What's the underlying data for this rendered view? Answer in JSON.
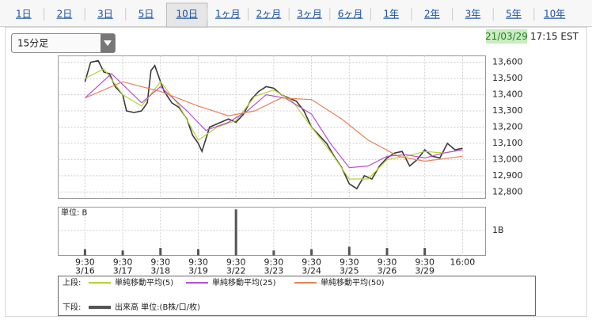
{
  "tabs": [
    "1日",
    "2日",
    "3日",
    "5日",
    "10日",
    "1ヶ月",
    "2ヶ月",
    "3ヶ月",
    "6ヶ月",
    "1年",
    "2年",
    "3年",
    "5年",
    "10年"
  ],
  "selected_tab": 4,
  "interval": "15分足",
  "timestamp": {
    "date": "21/03/29",
    "time": "17:15 EST"
  },
  "legend": {
    "upper": "上段:",
    "lower": "下段:"
  },
  "chart_data": [
    {
      "type": "line",
      "xlim": [
        -0.71,
        10.61
      ],
      "ylim": [
        12760,
        13640
      ],
      "grid": true,
      "yticks": [
        {
          "value": 12800,
          "label": "12,800"
        },
        {
          "value": 12900,
          "label": "12,900"
        },
        {
          "value": 13000,
          "label": "13,000"
        },
        {
          "value": 13100,
          "label": "13,100"
        },
        {
          "value": 13200,
          "label": "13,200"
        },
        {
          "value": 13300,
          "label": "13,300"
        },
        {
          "value": 13400,
          "label": "13,400"
        },
        {
          "value": 13500,
          "label": "13,500"
        },
        {
          "value": 13600,
          "label": "13,600"
        }
      ],
      "xticks": [
        {
          "value": 0,
          "label": "9:30"
        },
        {
          "value": 1,
          "label": "9:30"
        },
        {
          "value": 2,
          "label": "9:30"
        },
        {
          "value": 3,
          "label": "9:30"
        },
        {
          "value": 4,
          "label": "9:30"
        },
        {
          "value": 5,
          "label": "9:30"
        },
        {
          "value": 6,
          "label": "9:30"
        },
        {
          "value": 7,
          "label": "9:30"
        },
        {
          "value": 8,
          "label": "9:30"
        },
        {
          "value": 9,
          "label": "9:30"
        },
        {
          "value": 10,
          "label": "16:00"
        }
      ],
      "xtick_dates": [
        "3/16",
        "3/17",
        "3/18",
        "3/19",
        "3/22",
        "3/23",
        "3/24",
        "3/25",
        "3/26",
        "3/29",
        null
      ],
      "series": [
        {
          "color": "#3a3a3a",
          "x": [
            0,
            0.15,
            0.35,
            0.5,
            0.65,
            0.8,
            1.0,
            1.1,
            1.3,
            1.5,
            1.65,
            1.75,
            1.85,
            2.0,
            2.1,
            2.3,
            2.5,
            2.7,
            2.85,
            3.0,
            3.1,
            3.3,
            3.5,
            3.8,
            4.0,
            4.2,
            4.4,
            4.6,
            4.8,
            5.0,
            5.2,
            5.4,
            5.6,
            5.8,
            6.0,
            6.2,
            6.4,
            6.6,
            6.8,
            7.0,
            7.2,
            7.4,
            7.6,
            7.8,
            8.0,
            8.2,
            8.4,
            8.6,
            8.8,
            9.0,
            9.2,
            9.4,
            9.6,
            9.8,
            10.0
          ],
          "values": [
            13480,
            13600,
            13610,
            13540,
            13530,
            13450,
            13400,
            13300,
            13290,
            13300,
            13350,
            13550,
            13580,
            13480,
            13420,
            13350,
            13320,
            13250,
            13150,
            13100,
            13050,
            13200,
            13220,
            13250,
            13230,
            13280,
            13370,
            13420,
            13450,
            13440,
            13400,
            13380,
            13360,
            13300,
            13200,
            13150,
            13100,
            13020,
            12950,
            12850,
            12820,
            12900,
            12880,
            12960,
            13010,
            13040,
            13050,
            12960,
            13000,
            13060,
            13020,
            13010,
            13100,
            13060,
            13070
          ]
        },
        {
          "name": "単純移動平均(5)",
          "color": "#b5d334",
          "x": [
            0,
            0.5,
            1.0,
            1.5,
            2.0,
            2.5,
            3.0,
            3.5,
            4.0,
            4.5,
            5.0,
            5.5,
            6.0,
            6.5,
            7.0,
            7.5,
            8.0,
            8.5,
            9.0,
            9.5,
            10.0
          ],
          "values": [
            13500,
            13560,
            13400,
            13330,
            13480,
            13330,
            13120,
            13200,
            13240,
            13390,
            13430,
            13360,
            13200,
            13050,
            12880,
            12880,
            13000,
            13020,
            13050,
            13040,
            13060
          ]
        },
        {
          "name": "単純移動平均(25)",
          "color": "#b84fd6",
          "x": [
            0,
            0.7,
            1.5,
            2.0,
            2.7,
            3.2,
            3.8,
            4.3,
            4.8,
            5.3,
            6.0,
            6.5,
            7.0,
            7.5,
            8.0,
            8.5,
            9.0,
            9.5,
            10.0
          ],
          "values": [
            13380,
            13530,
            13350,
            13450,
            13300,
            13180,
            13230,
            13300,
            13400,
            13380,
            13280,
            13100,
            12950,
            12960,
            13020,
            13030,
            13010,
            13040,
            13060
          ]
        },
        {
          "name": "単純移動平均(50)",
          "color": "#e8825a",
          "x": [
            0,
            1.0,
            2.0,
            3.0,
            3.8,
            4.5,
            5.2,
            6.0,
            6.8,
            7.5,
            8.3,
            9.0,
            10.0
          ],
          "values": [
            13380,
            13480,
            13420,
            13330,
            13270,
            13300,
            13380,
            13370,
            13250,
            13120,
            13020,
            12990,
            13020
          ]
        }
      ]
    },
    {
      "type": "bar",
      "unit_label": "単位: B",
      "xlim": [
        -0.71,
        10.61
      ],
      "ylim": [
        0,
        1.94
      ],
      "yticks": [
        {
          "value": 1,
          "label": "1B"
        }
      ],
      "series": [
        {
          "name": "出来高 単位:(B株/口/枚)",
          "color": "#555555",
          "x": [
            0,
            1,
            2,
            3,
            4,
            5,
            6,
            7,
            8,
            9
          ],
          "values": [
            0.25,
            0.2,
            0.3,
            0.25,
            1.85,
            0.2,
            0.25,
            0.35,
            0.3,
            0.3
          ]
        }
      ]
    }
  ]
}
